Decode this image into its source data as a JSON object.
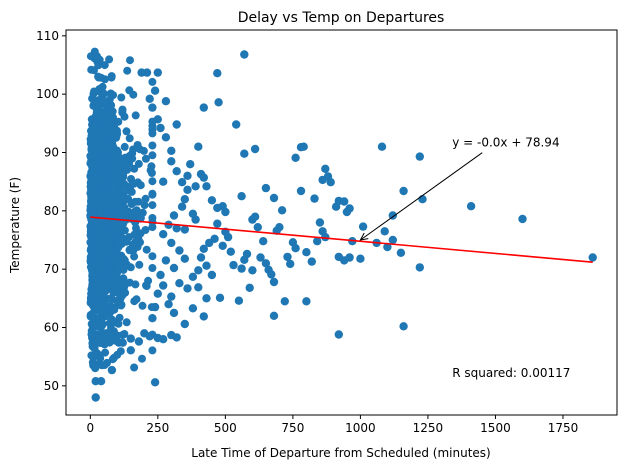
{
  "chart_data": {
    "type": "scatter",
    "title": "Delay vs Temp on Departures",
    "xlabel": "Late Time of Departure from Scheduled (minutes)",
    "ylabel": "Temperature (F)",
    "xlim": [
      -90,
      1950
    ],
    "ylim": [
      45,
      111
    ],
    "xticks": [
      0,
      250,
      500,
      750,
      1000,
      1250,
      1500,
      1750
    ],
    "yticks": [
      50,
      60,
      70,
      80,
      90,
      100,
      110
    ],
    "grid": false,
    "colors": {
      "points": "#1f77b4",
      "regression": "#ff0000",
      "axes": "#000000"
    },
    "regression": {
      "slope": -0.00416,
      "intercept": 78.94,
      "x_range": [
        0,
        1860
      ]
    },
    "annotations": [
      {
        "text": "y = -0.0x + 78.94",
        "x": 1340,
        "y": 91,
        "arrow_to": [
          1000,
          75
        ]
      },
      {
        "text": "R squared: 0.00117",
        "x": 1340,
        "y": 51.5
      }
    ],
    "dense_region": {
      "x": [
        0,
        230
      ],
      "y": [
        53,
        107.5
      ],
      "count": 1500
    },
    "points": [
      [
        570,
        106.8
      ],
      [
        470,
        103.6
      ],
      [
        475,
        98.6
      ],
      [
        420,
        97.7
      ],
      [
        540,
        94.8
      ],
      [
        570,
        89.8
      ],
      [
        610,
        90.6
      ],
      [
        780,
        90.9
      ],
      [
        790,
        91.0
      ],
      [
        760,
        89.1
      ],
      [
        1080,
        91.0
      ],
      [
        1220,
        89.3
      ],
      [
        650,
        83.9
      ],
      [
        560,
        82.5
      ],
      [
        680,
        82.2
      ],
      [
        780,
        83.4
      ],
      [
        830,
        82.1
      ],
      [
        870,
        87.2
      ],
      [
        880,
        85.9
      ],
      [
        860,
        85.3
      ],
      [
        890,
        84.9
      ],
      [
        920,
        81.7
      ],
      [
        940,
        81.6
      ],
      [
        910,
        80.7
      ],
      [
        950,
        79.8
      ],
      [
        960,
        80.4
      ],
      [
        1160,
        83.4
      ],
      [
        1230,
        82.0
      ],
      [
        1410,
        80.8
      ],
      [
        1600,
        78.6
      ],
      [
        1120,
        79.2
      ],
      [
        1010,
        77.3
      ],
      [
        1090,
        76.5
      ],
      [
        1060,
        74.5
      ],
      [
        1100,
        73.8
      ],
      [
        1120,
        75.0
      ],
      [
        1150,
        72.8
      ],
      [
        1220,
        70.3
      ],
      [
        1860,
        72.0
      ],
      [
        920,
        72.1
      ],
      [
        940,
        71.5
      ],
      [
        960,
        72.0
      ],
      [
        1000,
        71.8
      ],
      [
        970,
        74.8
      ],
      [
        870,
        75.5
      ],
      [
        850,
        78.0
      ],
      [
        860,
        76.5
      ],
      [
        840,
        74.8
      ],
      [
        820,
        71.3
      ],
      [
        800,
        72.9
      ],
      [
        750,
        74.6
      ],
      [
        760,
        73.6
      ],
      [
        730,
        72.1
      ],
      [
        740,
        70.9
      ],
      [
        700,
        77.2
      ],
      [
        690,
        76.6
      ],
      [
        710,
        80.1
      ],
      [
        600,
        78.5
      ],
      [
        610,
        79.0
      ],
      [
        620,
        77.2
      ],
      [
        640,
        74.8
      ],
      [
        630,
        72.0
      ],
      [
        650,
        71.0
      ],
      [
        660,
        69.9
      ],
      [
        670,
        69.1
      ],
      [
        680,
        67.8
      ],
      [
        600,
        69.8
      ],
      [
        590,
        66.8
      ],
      [
        570,
        71.6
      ],
      [
        580,
        72.6
      ],
      [
        520,
        73.0
      ],
      [
        530,
        70.7
      ],
      [
        560,
        70.1
      ],
      [
        550,
        64.6
      ],
      [
        480,
        65.1
      ],
      [
        430,
        65.0
      ],
      [
        420,
        61.9
      ],
      [
        380,
        63.3
      ],
      [
        350,
        60.6
      ],
      [
        720,
        64.5
      ],
      [
        680,
        62.0
      ],
      [
        800,
        64.5
      ],
      [
        920,
        58.8
      ],
      [
        1160,
        60.2
      ],
      [
        240,
        50.6
      ],
      [
        20,
        48.0
      ],
      [
        20,
        50.8
      ],
      [
        40,
        50.8
      ],
      [
        80,
        52.7
      ],
      [
        150,
        56.1
      ],
      [
        470,
        77.8
      ],
      [
        460,
        75.2
      ],
      [
        440,
        74.5
      ],
      [
        420,
        73.5
      ],
      [
        410,
        72.0
      ],
      [
        430,
        70.6
      ],
      [
        450,
        69.0
      ],
      [
        400,
        69.8
      ],
      [
        380,
        68.7
      ],
      [
        400,
        66.9
      ],
      [
        360,
        66.7
      ],
      [
        330,
        67.6
      ],
      [
        300,
        65.3
      ],
      [
        290,
        64.0
      ],
      [
        310,
        62.5
      ],
      [
        270,
        58.0
      ],
      [
        250,
        58.2
      ],
      [
        220,
        58.5
      ],
      [
        200,
        59.0
      ],
      [
        180,
        57.6
      ],
      [
        490,
        80.8
      ],
      [
        500,
        79.8
      ],
      [
        470,
        80.5
      ],
      [
        450,
        81.8
      ],
      [
        430,
        84.2
      ],
      [
        410,
        86.3
      ],
      [
        420,
        85.7
      ],
      [
        390,
        84.2
      ],
      [
        360,
        83.6
      ],
      [
        340,
        84.9
      ],
      [
        320,
        86.8
      ],
      [
        300,
        88.5
      ],
      [
        300,
        90.3
      ],
      [
        280,
        92.6
      ],
      [
        260,
        94.2
      ],
      [
        250,
        95.7
      ],
      [
        230,
        97.7
      ],
      [
        220,
        99.2
      ],
      [
        240,
        100.6
      ],
      [
        250,
        103.7
      ],
      [
        210,
        103.7
      ],
      [
        190,
        103.7
      ],
      [
        280,
        98.8
      ],
      [
        320,
        94.8
      ],
      [
        360,
        86.0
      ],
      [
        500,
        76.4
      ],
      [
        490,
        74.0
      ],
      [
        510,
        75.5
      ],
      [
        380,
        79.5
      ],
      [
        340,
        80.7
      ],
      [
        310,
        79.2
      ],
      [
        290,
        77.6
      ],
      [
        270,
        76.0
      ],
      [
        300,
        74.5
      ],
      [
        330,
        73.2
      ],
      [
        350,
        71.8
      ],
      [
        310,
        70.2
      ],
      [
        280,
        71.5
      ],
      [
        260,
        69.0
      ],
      [
        270,
        67.2
      ],
      [
        250,
        65.8
      ],
      [
        240,
        63.5
      ],
      [
        230,
        61.6
      ],
      [
        300,
        58.7
      ],
      [
        320,
        58.3
      ],
      [
        150,
        58.1
      ],
      [
        120,
        57.4
      ],
      [
        100,
        58.6
      ],
      [
        60,
        59.0
      ],
      [
        30,
        55.3
      ],
      [
        10,
        54.0
      ],
      [
        15,
        56.5
      ],
      [
        5,
        58.8
      ],
      [
        400,
        91.0
      ],
      [
        370,
        88.0
      ],
      [
        350,
        82.0
      ],
      [
        390,
        78.5
      ],
      [
        350,
        76.8
      ],
      [
        320,
        77.0
      ],
      [
        270,
        85.0
      ]
    ]
  }
}
